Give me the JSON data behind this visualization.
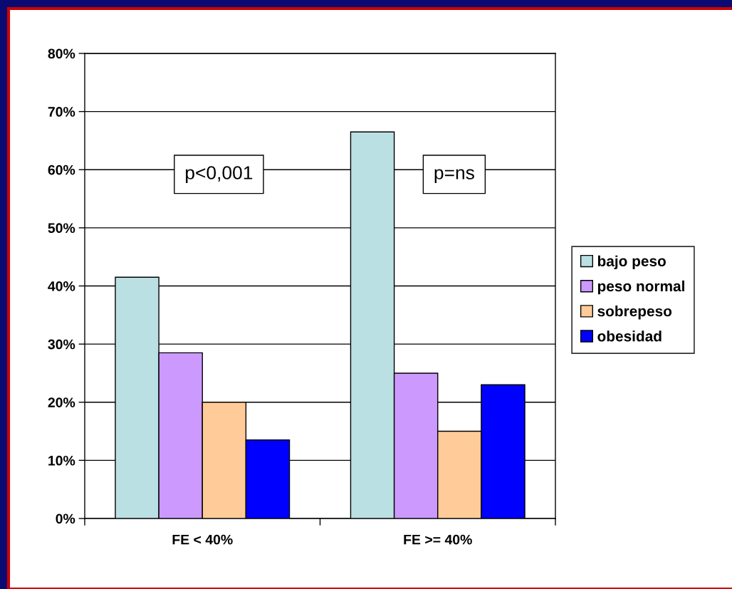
{
  "chart_data": {
    "type": "bar",
    "categories": [
      "FE < 40%",
      "FE >= 40%"
    ],
    "series": [
      {
        "name": "bajo peso",
        "color": "#bbe0e3",
        "values": [
          41.5,
          66.5
        ]
      },
      {
        "name": "peso normal",
        "color": "#cc99ff",
        "values": [
          28.5,
          25
        ]
      },
      {
        "name": "sobrepeso",
        "color": "#ffcc99",
        "values": [
          20,
          15
        ]
      },
      {
        "name": "obesidad",
        "color": "#0000ff",
        "values": [
          13.5,
          23
        ]
      }
    ],
    "ylim": [
      0,
      80
    ],
    "yticks": [
      {
        "value": 0,
        "label": "0%"
      },
      {
        "value": 10,
        "label": "10%"
      },
      {
        "value": 20,
        "label": "20%"
      },
      {
        "value": 30,
        "label": "30%"
      },
      {
        "value": 40,
        "label": "40%"
      },
      {
        "value": 50,
        "label": "50%"
      },
      {
        "value": 60,
        "label": "60%"
      },
      {
        "value": 70,
        "label": "70%"
      },
      {
        "value": 80,
        "label": "80%"
      }
    ],
    "grid": "y",
    "legend": "right",
    "annotations": [
      "p<0,001",
      "p=ns"
    ]
  }
}
